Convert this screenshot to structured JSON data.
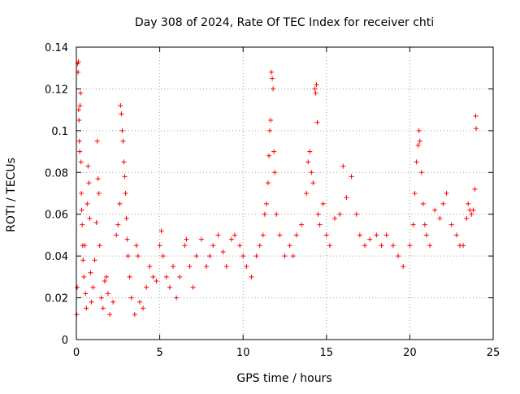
{
  "chart_data": {
    "type": "scatter",
    "title": "Day 308 of 2024, Rate Of TEC Index for receiver chti",
    "xlabel": "GPS time / hours",
    "ylabel": "ROTI / TECUs",
    "xlim": [
      0,
      25
    ],
    "ylim": [
      0,
      0.14
    ],
    "x_ticks": [
      0,
      5,
      10,
      15,
      20,
      25
    ],
    "x_tick_labels": [
      "0",
      "5",
      "10",
      "15",
      "20",
      "25"
    ],
    "y_ticks": [
      0,
      0.02,
      0.04,
      0.06,
      0.08,
      0.1,
      0.12,
      0.14
    ],
    "y_tick_labels": [
      "0",
      "0.02",
      "0.04",
      "0.06",
      "0.08",
      "0.1",
      "0.12",
      "0.14"
    ],
    "grid": true,
    "marker": "+",
    "series": [
      {
        "name": "ROTI",
        "color": "#ff0000",
        "points": [
          [
            0.02,
            0.012
          ],
          [
            0.05,
            0.025
          ],
          [
            0.08,
            0.132
          ],
          [
            0.1,
            0.128
          ],
          [
            0.12,
            0.133
          ],
          [
            0.14,
            0.11
          ],
          [
            0.16,
            0.105
          ],
          [
            0.18,
            0.095
          ],
          [
            0.2,
            0.09
          ],
          [
            0.22,
            0.112
          ],
          [
            0.25,
            0.118
          ],
          [
            0.28,
            0.085
          ],
          [
            0.3,
            0.07
          ],
          [
            0.32,
            0.062
          ],
          [
            0.35,
            0.055
          ],
          [
            0.38,
            0.045
          ],
          [
            0.4,
            0.038
          ],
          [
            0.45,
            0.03
          ],
          [
            0.5,
            0.045
          ],
          [
            0.55,
            0.022
          ],
          [
            0.6,
            0.015
          ],
          [
            0.65,
            0.065
          ],
          [
            0.7,
            0.083
          ],
          [
            0.75,
            0.075
          ],
          [
            0.8,
            0.058
          ],
          [
            0.85,
            0.032
          ],
          [
            0.9,
            0.018
          ],
          [
            1.0,
            0.025
          ],
          [
            1.1,
            0.038
          ],
          [
            1.2,
            0.056
          ],
          [
            1.25,
            0.095
          ],
          [
            1.3,
            0.077
          ],
          [
            1.35,
            0.07
          ],
          [
            1.4,
            0.045
          ],
          [
            1.5,
            0.02
          ],
          [
            1.6,
            0.015
          ],
          [
            1.7,
            0.028
          ],
          [
            1.8,
            0.03
          ],
          [
            1.9,
            0.022
          ],
          [
            2.0,
            0.012
          ],
          [
            2.2,
            0.018
          ],
          [
            2.4,
            0.05
          ],
          [
            2.5,
            0.055
          ],
          [
            2.6,
            0.065
          ],
          [
            2.65,
            0.112
          ],
          [
            2.7,
            0.108
          ],
          [
            2.75,
            0.1
          ],
          [
            2.8,
            0.095
          ],
          [
            2.85,
            0.085
          ],
          [
            2.9,
            0.078
          ],
          [
            2.95,
            0.07
          ],
          [
            3.0,
            0.058
          ],
          [
            3.05,
            0.048
          ],
          [
            3.1,
            0.04
          ],
          [
            3.2,
            0.03
          ],
          [
            3.3,
            0.02
          ],
          [
            3.5,
            0.012
          ],
          [
            3.6,
            0.045
          ],
          [
            3.7,
            0.04
          ],
          [
            3.8,
            0.018
          ],
          [
            4.0,
            0.015
          ],
          [
            4.2,
            0.025
          ],
          [
            4.4,
            0.035
          ],
          [
            4.6,
            0.03
          ],
          [
            4.8,
            0.028
          ],
          [
            5.0,
            0.045
          ],
          [
            5.1,
            0.052
          ],
          [
            5.2,
            0.04
          ],
          [
            5.4,
            0.03
          ],
          [
            5.6,
            0.025
          ],
          [
            5.8,
            0.035
          ],
          [
            6.0,
            0.02
          ],
          [
            6.2,
            0.03
          ],
          [
            6.5,
            0.045
          ],
          [
            6.6,
            0.048
          ],
          [
            6.8,
            0.035
          ],
          [
            7.0,
            0.025
          ],
          [
            7.2,
            0.04
          ],
          [
            7.5,
            0.048
          ],
          [
            7.8,
            0.035
          ],
          [
            8.0,
            0.04
          ],
          [
            8.2,
            0.045
          ],
          [
            8.5,
            0.05
          ],
          [
            8.8,
            0.042
          ],
          [
            9.0,
            0.035
          ],
          [
            9.3,
            0.048
          ],
          [
            9.5,
            0.05
          ],
          [
            9.8,
            0.045
          ],
          [
            10.0,
            0.04
          ],
          [
            10.2,
            0.035
          ],
          [
            10.5,
            0.03
          ],
          [
            10.8,
            0.04
          ],
          [
            11.0,
            0.045
          ],
          [
            11.2,
            0.05
          ],
          [
            11.3,
            0.06
          ],
          [
            11.4,
            0.065
          ],
          [
            11.5,
            0.075
          ],
          [
            11.55,
            0.088
          ],
          [
            11.6,
            0.1
          ],
          [
            11.65,
            0.105
          ],
          [
            11.7,
            0.128
          ],
          [
            11.75,
            0.125
          ],
          [
            11.8,
            0.12
          ],
          [
            11.85,
            0.09
          ],
          [
            11.9,
            0.08
          ],
          [
            12.0,
            0.06
          ],
          [
            12.2,
            0.05
          ],
          [
            12.5,
            0.04
          ],
          [
            12.8,
            0.045
          ],
          [
            13.0,
            0.04
          ],
          [
            13.2,
            0.05
          ],
          [
            13.5,
            0.055
          ],
          [
            13.8,
            0.07
          ],
          [
            13.9,
            0.085
          ],
          [
            14.0,
            0.09
          ],
          [
            14.1,
            0.08
          ],
          [
            14.2,
            0.075
          ],
          [
            14.3,
            0.12
          ],
          [
            14.35,
            0.118
          ],
          [
            14.4,
            0.122
          ],
          [
            14.45,
            0.104
          ],
          [
            14.5,
            0.06
          ],
          [
            14.6,
            0.055
          ],
          [
            14.8,
            0.065
          ],
          [
            15.0,
            0.05
          ],
          [
            15.2,
            0.045
          ],
          [
            15.5,
            0.058
          ],
          [
            15.8,
            0.06
          ],
          [
            16.0,
            0.083
          ],
          [
            16.2,
            0.068
          ],
          [
            16.5,
            0.078
          ],
          [
            16.8,
            0.06
          ],
          [
            17.0,
            0.05
          ],
          [
            17.3,
            0.045
          ],
          [
            17.6,
            0.048
          ],
          [
            18.0,
            0.05
          ],
          [
            18.3,
            0.045
          ],
          [
            18.6,
            0.05
          ],
          [
            19.0,
            0.045
          ],
          [
            19.3,
            0.04
          ],
          [
            19.6,
            0.035
          ],
          [
            20.0,
            0.045
          ],
          [
            20.2,
            0.055
          ],
          [
            20.3,
            0.07
          ],
          [
            20.4,
            0.085
          ],
          [
            20.5,
            0.093
          ],
          [
            20.55,
            0.1
          ],
          [
            20.6,
            0.095
          ],
          [
            20.7,
            0.08
          ],
          [
            20.8,
            0.065
          ],
          [
            20.9,
            0.055
          ],
          [
            21.0,
            0.05
          ],
          [
            21.2,
            0.045
          ],
          [
            21.5,
            0.062
          ],
          [
            21.8,
            0.058
          ],
          [
            22.0,
            0.065
          ],
          [
            22.2,
            0.07
          ],
          [
            22.5,
            0.055
          ],
          [
            22.8,
            0.05
          ],
          [
            23.0,
            0.045
          ],
          [
            23.2,
            0.045
          ],
          [
            23.4,
            0.058
          ],
          [
            23.5,
            0.065
          ],
          [
            23.6,
            0.062
          ],
          [
            23.7,
            0.06
          ],
          [
            23.8,
            0.062
          ],
          [
            23.9,
            0.072
          ],
          [
            23.95,
            0.107
          ],
          [
            23.98,
            0.101
          ]
        ]
      }
    ]
  }
}
